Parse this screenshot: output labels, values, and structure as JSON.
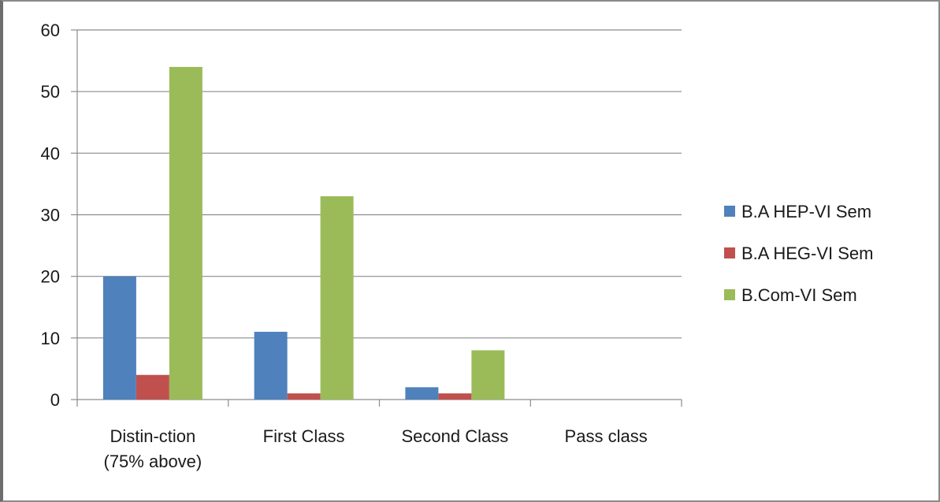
{
  "chart_data": {
    "type": "bar",
    "categories": [
      [
        "Distin-ction",
        "(75% above)"
      ],
      [
        "First Class"
      ],
      [
        "Second Class"
      ],
      [
        "Pass class"
      ]
    ],
    "series": [
      {
        "name": "B.A HEP-VI Sem",
        "color": "#4f81bd",
        "values": [
          20,
          11,
          2,
          0
        ]
      },
      {
        "name": "B.A HEG-VI Sem",
        "color": "#c0504d",
        "values": [
          4,
          1,
          1,
          0
        ]
      },
      {
        "name": "B.Com-VI Sem",
        "color": "#9bbb59",
        "values": [
          54,
          33,
          8,
          0
        ]
      }
    ],
    "ylim": [
      0,
      60
    ],
    "yticks": [
      0,
      10,
      20,
      30,
      40,
      50,
      60
    ],
    "grid": true,
    "legend_position": "right"
  }
}
